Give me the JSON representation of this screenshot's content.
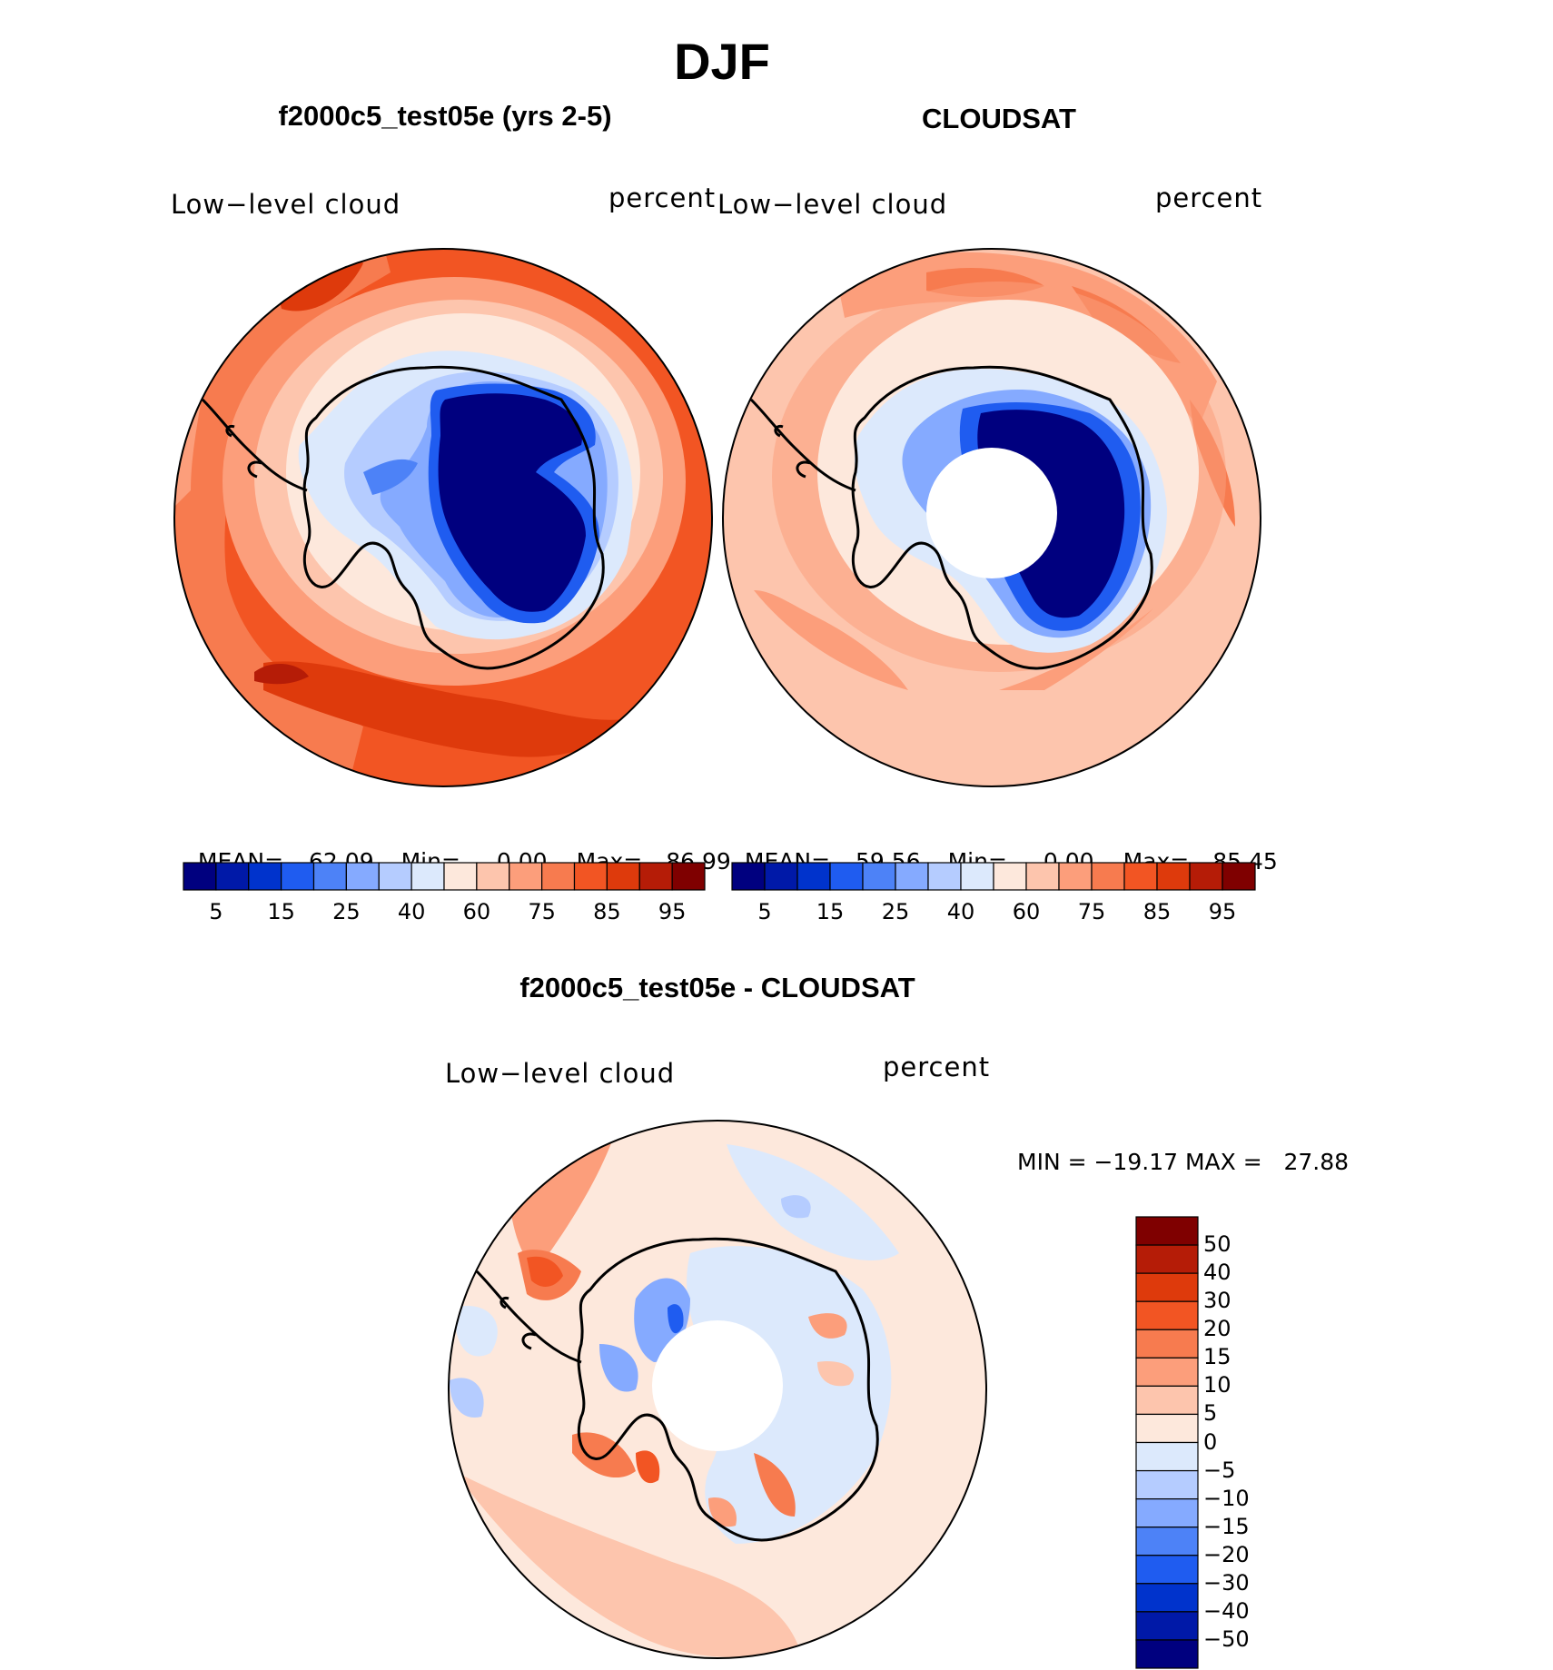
{
  "figure": {
    "title": "DJF"
  },
  "panels": [
    {
      "id": "model",
      "title": "f2000c5_test05e (yrs 2-5)",
      "left_label": "Low−level cloud",
      "right_label": "percent",
      "stats": {
        "mean_label": "MEAN=",
        "mean": "62.09",
        "min_label": "Min=",
        "min": "0.00",
        "max_label": "Max=",
        "max": "86.99"
      }
    },
    {
      "id": "obs",
      "title": "CLOUDSAT",
      "left_label": "Low−level cloud",
      "right_label": "percent",
      "stats": {
        "mean_label": "MEAN=",
        "mean": "59.56",
        "min_label": "Min=",
        "min": "0.00",
        "max_label": "Max=",
        "max": "85.45"
      }
    },
    {
      "id": "diff",
      "title": "f2000c5_test05e - CLOUDSAT",
      "left_label": "Low−level cloud",
      "right_label": "percent",
      "stats_text": "MIN = −19.17 MAX =   27.88"
    }
  ],
  "colorbar_main": {
    "colors": [
      "#00007f",
      "#0019a8",
      "#0033cc",
      "#1f5cf0",
      "#4d82f7",
      "#85aaff",
      "#b5ccff",
      "#dce9fc",
      "#fde8dc",
      "#fdc5ad",
      "#fc9e7b",
      "#f77b4f",
      "#f25523",
      "#de3a0c",
      "#b51c07",
      "#7f0000"
    ],
    "tick_labels": [
      "5",
      "15",
      "25",
      "40",
      "60",
      "75",
      "85",
      "95"
    ]
  },
  "colorbar_diff": {
    "colors_top_to_bottom": [
      "#7f0000",
      "#b51c07",
      "#de3a0c",
      "#f25523",
      "#f77b4f",
      "#fc9e7b",
      "#fdc5ad",
      "#fde8dc",
      "#dce9fc",
      "#b5ccff",
      "#85aaff",
      "#4d82f7",
      "#1f5cf0",
      "#0033cc",
      "#0019a8",
      "#00007f"
    ],
    "tick_labels": [
      "50",
      "40",
      "30",
      "20",
      "15",
      "10",
      "5",
      "0",
      "−5",
      "−10",
      "−15",
      "−20",
      "−30",
      "−40",
      "−50"
    ]
  }
}
